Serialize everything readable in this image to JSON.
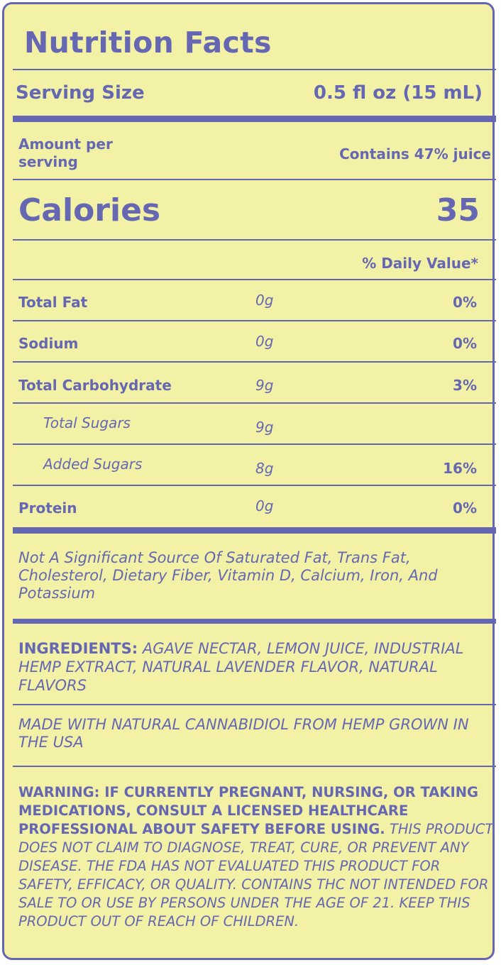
{
  "title": "Nutrition Facts",
  "serving": {
    "label": "Serving Size",
    "value": "0.5 fl oz (15 mL)"
  },
  "amount_per_serving": "Amount per serving",
  "juice_note": "Contains 47% juice",
  "calories": {
    "label": "Calories",
    "value": "35"
  },
  "daily_value_header": "% Daily Value*",
  "nutrients": [
    {
      "name": "Total Fat",
      "amount": "0g",
      "dv": "0%"
    },
    {
      "name": "Sodium",
      "amount": "0g",
      "dv": "0%"
    },
    {
      "name": "Total Carbohydrate",
      "amount": "9g",
      "dv": "3%"
    },
    {
      "name": "Total Sugars",
      "amount": "9g",
      "dv": ""
    },
    {
      "name": "Added Sugars",
      "amount": "8g",
      "dv": "16%"
    },
    {
      "name": "Protein",
      "amount": "0g",
      "dv": "0%"
    }
  ],
  "not_significant": "Not A Significant Source Of Saturated Fat, Trans Fat, Cholesterol, Dietary Fiber, Vitamin D, Calcium, Iron, And Potassium",
  "ingredients": {
    "label": "INGREDIENTS:",
    "text": "AGAVE NECTAR, LEMON JUICE, INDUSTRIAL HEMP EXTRACT, NATURAL LAVENDER FLAVOR, NATURAL FLAVORS"
  },
  "made_with": "MADE WITH NATURAL CANNABIDIOL FROM HEMP GROWN IN THE USA",
  "warning": {
    "bold": "WARNING: IF CURRENTLY PREGNANT, NURSING, OR TAKING MEDICATIONS, CONSULT A LICENSED HEALTHCARE PROFESSIONAL ABOUT SAFETY BEFORE USING.",
    "italic": "THIS PRODUCT DOES NOT CLAIM TO DIAGNOSE, TREAT, CURE, OR PREVENT ANY DISEASE. THE FDA HAS NOT EVALUATED THIS PRODUCT FOR SAFETY, EFFICACY, OR QUALITY. CONTAINS THC NOT INTENDED FOR SALE TO OR USE BY PERSONS UNDER THE AGE OF 21. KEEP THIS PRODUCT OUT OF REACH OF CHILDREN."
  },
  "colors": {
    "background": "#f2f1a6",
    "ink": "#6567b3"
  }
}
